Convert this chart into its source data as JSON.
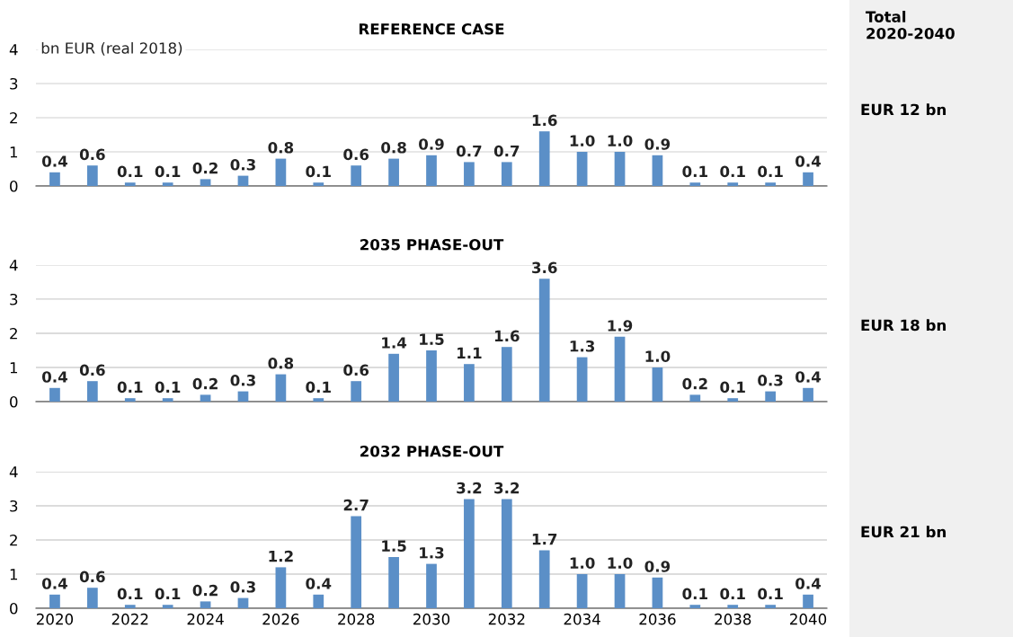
{
  "chart_data": [
    {
      "type": "bar",
      "title": "REFERENCE CASE",
      "ylabel": "bn EUR (real 2018)",
      "x": [
        2020,
        2021,
        2022,
        2023,
        2024,
        2025,
        2026,
        2027,
        2028,
        2029,
        2030,
        2031,
        2032,
        2033,
        2034,
        2035,
        2036,
        2037,
        2038,
        2039,
        2040
      ],
      "values": [
        0.4,
        0.6,
        0.1,
        0.1,
        0.2,
        0.3,
        0.8,
        0.1,
        0.6,
        0.8,
        0.9,
        0.7,
        0.7,
        1.6,
        1.0,
        1.0,
        0.9,
        0.1,
        0.1,
        0.1,
        0.4
      ],
      "value_labels": [
        "0.4",
        "0.6",
        "0.1",
        "0.1",
        "0.2",
        "0.3",
        "0.8",
        "0.1",
        "0.6",
        "0.8",
        "0.9",
        "0.7",
        "0.7",
        "1.6",
        "1.0",
        "1.0",
        "0.9",
        "0.1",
        "0.1",
        "0.1",
        "0.4"
      ],
      "color": "#5b8fc7",
      "xlim": [
        2019.5,
        2040.5
      ],
      "ylim": [
        0,
        4
      ],
      "yticks": [
        0,
        1,
        2,
        3,
        4
      ],
      "grid": "y",
      "tick_labels": "y",
      "annotations": [
        "Total\n2020-2040",
        "EUR 12 bn"
      ]
    },
    {
      "type": "bar",
      "title": "2035 PHASE-OUT",
      "x": [
        2020,
        2021,
        2022,
        2023,
        2024,
        2025,
        2026,
        2027,
        2028,
        2029,
        2030,
        2031,
        2032,
        2033,
        2034,
        2035,
        2036,
        2037,
        2038,
        2039,
        2040
      ],
      "values": [
        0.4,
        0.6,
        0.1,
        0.1,
        0.2,
        0.3,
        0.8,
        0.1,
        0.6,
        1.4,
        1.5,
        1.1,
        1.6,
        3.6,
        1.3,
        1.9,
        1.0,
        0.2,
        0.1,
        0.3,
        0.4
      ],
      "value_labels": [
        "0.4",
        "0.6",
        "0.1",
        "0.1",
        "0.2",
        "0.3",
        "0.8",
        "0.1",
        "0.6",
        "1.4",
        "1.5",
        "1.1",
        "1.6",
        "3.6",
        "1.3",
        "1.9",
        "1.0",
        "0.2",
        "0.1",
        "0.3",
        "0.4"
      ],
      "color": "#5b8fc7",
      "xlim": [
        2019.5,
        2040.5
      ],
      "ylim": [
        0,
        4
      ],
      "yticks": [
        0,
        1,
        2,
        3,
        4
      ],
      "grid": "y",
      "tick_labels": "y",
      "annotations": [
        "EUR 18 bn"
      ]
    },
    {
      "type": "bar",
      "title": "2032 PHASE-OUT",
      "x": [
        2020,
        2021,
        2022,
        2023,
        2024,
        2025,
        2026,
        2027,
        2028,
        2029,
        2030,
        2031,
        2032,
        2033,
        2034,
        2035,
        2036,
        2037,
        2038,
        2039,
        2040
      ],
      "values": [
        0.4,
        0.6,
        0.1,
        0.1,
        0.2,
        0.3,
        1.2,
        0.4,
        2.7,
        1.5,
        1.3,
        3.2,
        3.2,
        1.7,
        1.0,
        1.0,
        0.9,
        0.1,
        0.1,
        0.1,
        0.4
      ],
      "value_labels": [
        "0.4",
        "0.6",
        "0.1",
        "0.1",
        "0.2",
        "0.3",
        "1.2",
        "0.4",
        "2.7",
        "1.5",
        "1.3",
        "3.2",
        "3.2",
        "1.7",
        "1.0",
        "1.0",
        "0.9",
        "0.1",
        "0.1",
        "0.1",
        "0.4"
      ],
      "color": "#5b8fc7",
      "xlim": [
        2019.5,
        2040.5
      ],
      "ylim": [
        0,
        4
      ],
      "yticks": [
        0,
        1,
        2,
        3,
        4
      ],
      "xticks": [
        2020,
        2022,
        2024,
        2026,
        2028,
        2030,
        2032,
        2034,
        2036,
        2038,
        2040
      ],
      "grid": "y",
      "annotations": [
        "EUR 21 bn"
      ]
    }
  ]
}
